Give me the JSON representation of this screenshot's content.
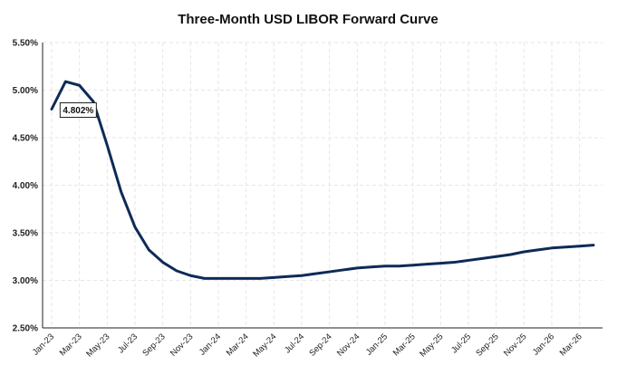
{
  "chart_data": {
    "type": "line",
    "title": "Three-Month USD LIBOR Forward Curve",
    "xlabel": "",
    "ylabel": "",
    "ylim": [
      2.5,
      5.5
    ],
    "y_ticks": [
      "2.50%",
      "3.00%",
      "3.50%",
      "4.00%",
      "4.50%",
      "5.00%",
      "5.50%"
    ],
    "y_tick_values": [
      2.5,
      3.0,
      3.5,
      4.0,
      4.5,
      5.0,
      5.5
    ],
    "x_ticks": [
      "Jan-23",
      "Mar-23",
      "May-23",
      "Jul-23",
      "Sep-23",
      "Nov-23",
      "Jan-24",
      "Mar-24",
      "May-24",
      "Jul-24",
      "Sep-24",
      "Nov-24",
      "Jan-25",
      "Mar-25",
      "May-25",
      "Jul-25",
      "Sep-25",
      "Nov-25",
      "Jan-26",
      "Mar-26"
    ],
    "grid": true,
    "series": [
      {
        "x": [
          "Jan-23",
          "Feb-23",
          "Mar-23",
          "Apr-23",
          "May-23",
          "Jun-23",
          "Jul-23",
          "Aug-23",
          "Sep-23",
          "Oct-23",
          "Nov-23",
          "Dec-23",
          "Jan-24",
          "Feb-24",
          "Mar-24",
          "Apr-24",
          "May-24",
          "Jun-24",
          "Jul-24",
          "Aug-24",
          "Sep-24",
          "Oct-24",
          "Nov-24",
          "Dec-24",
          "Jan-25",
          "Feb-25",
          "Mar-25",
          "Apr-25",
          "May-25",
          "Jun-25",
          "Jul-25",
          "Aug-25",
          "Sep-25",
          "Oct-25",
          "Nov-25",
          "Dec-25",
          "Jan-26",
          "Feb-26",
          "Mar-26",
          "Apr-26"
        ],
        "values": [
          4.8,
          5.09,
          5.05,
          4.88,
          4.42,
          3.93,
          3.56,
          3.32,
          3.19,
          3.1,
          3.05,
          3.02,
          3.02,
          3.02,
          3.02,
          3.02,
          3.03,
          3.04,
          3.05,
          3.07,
          3.09,
          3.11,
          3.13,
          3.14,
          3.15,
          3.15,
          3.16,
          3.17,
          3.18,
          3.19,
          3.21,
          3.23,
          3.25,
          3.27,
          3.3,
          3.32,
          3.34,
          3.35,
          3.36,
          3.37
        ],
        "color": "#0d2b57"
      }
    ],
    "annotations": [
      {
        "label": "4.802%",
        "x": "Feb-23",
        "y": 4.8
      }
    ]
  }
}
